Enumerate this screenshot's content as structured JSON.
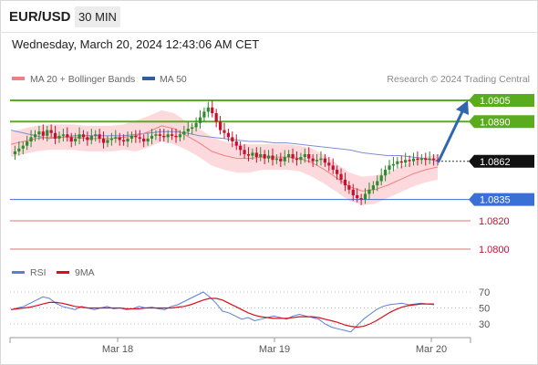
{
  "header": {
    "symbol": "EUR/USD",
    "timeframe": "30 MIN",
    "timestamp": "Wednesday, March 20, 2024 12:43:06 AM CET"
  },
  "legend": {
    "ma20": "MA 20 + Bollinger Bands",
    "ma50": "MA 50",
    "credit": "Research © 2024 Trading Central",
    "rsi": "RSI",
    "rsi_ma": "9MA"
  },
  "colors": {
    "candle_up": "#2e8b2e",
    "candle_down": "#c8102e",
    "ma20": "#f08080",
    "ma50": "#7f8fcf",
    "bollinger": "#fbd2d6",
    "resistance": "#5aab1e",
    "current": "#111111",
    "support": "#3a6fd8",
    "support_secondary": "#e07070",
    "arrow": "#2f66ae",
    "rsi": "#5b7fd6",
    "rsi_ma": "#d8101e"
  },
  "chart_data": [
    {
      "type": "candlestick",
      "title": "EUR/USD 30 MIN",
      "x_labels": [
        "Mar 18",
        "Mar 19",
        "Mar 20"
      ],
      "y_range": [
        1.0792,
        1.0912
      ],
      "close_path": [
        1.0867,
        1.0869,
        1.0871,
        1.0873,
        1.0876,
        1.0879,
        1.0881,
        1.0883,
        1.088,
        1.0884,
        1.0882,
        1.0878,
        1.088,
        1.0881,
        1.0879,
        1.0876,
        1.0878,
        1.0881,
        1.0879,
        1.0877,
        1.088,
        1.0881,
        1.0878,
        1.0875,
        1.0877,
        1.0878,
        1.0879,
        1.0877,
        1.0876,
        1.0878,
        1.088,
        1.0879,
        1.0878,
        1.0876,
        1.0878,
        1.088,
        1.0881,
        1.088,
        1.0879,
        1.0881,
        1.088,
        1.0879,
        1.0881,
        1.0883,
        1.0885,
        1.0886,
        1.0889,
        1.0893,
        1.0897,
        1.09,
        1.0896,
        1.089,
        1.0884,
        1.0882,
        1.0879,
        1.0876,
        1.0873,
        1.087,
        1.0867,
        1.0866,
        1.0868,
        1.0865,
        1.0867,
        1.0864,
        1.0866,
        1.0863,
        1.0864,
        1.0862,
        1.0865,
        1.0867,
        1.0864,
        1.0863,
        1.0865,
        1.0867,
        1.0864,
        1.0862,
        1.0863,
        1.0864,
        1.0861,
        1.0859,
        1.0856,
        1.0853,
        1.0849,
        1.0845,
        1.0842,
        1.0838,
        1.0836,
        1.0835,
        1.0839,
        1.0842,
        1.0845,
        1.0848,
        1.0852,
        1.0856,
        1.0859,
        1.086,
        1.0862,
        1.0861,
        1.0863,
        1.0862,
        1.0864,
        1.0863,
        1.0864,
        1.0863,
        1.0864,
        1.0863,
        1.0862
      ],
      "ma50_path": [
        1.0884,
        1.0882,
        1.088,
        1.0878,
        1.0879,
        1.088,
        1.088,
        1.088,
        1.088,
        1.088,
        1.0881,
        1.0882,
        1.0883,
        1.0883,
        1.0882,
        1.088,
        1.0879,
        1.0878,
        1.0877,
        1.0876,
        1.0876,
        1.0875,
        1.0875,
        1.0874,
        1.0873,
        1.0872,
        1.0871,
        1.087,
        1.0868,
        1.0867,
        1.0866,
        1.0866,
        1.0865,
        1.0864,
        1.0862
      ],
      "ma20_path": [
        1.0874,
        1.0876,
        1.0878,
        1.0879,
        1.0879,
        1.0879,
        1.0878,
        1.0878,
        1.0878,
        1.0879,
        1.088,
        1.0883,
        1.0887,
        1.0885,
        1.088,
        1.0875,
        1.0869,
        1.0866,
        1.0864,
        1.0864,
        1.0865,
        1.0865,
        1.0865,
        1.0864,
        1.0861,
        1.0856,
        1.085,
        1.0844,
        1.0841,
        1.0842,
        1.0845,
        1.0849,
        1.0853,
        1.0856,
        1.0858
      ],
      "levels": [
        {
          "value": 1.0905,
          "label": "1.0905",
          "kind": "resistance"
        },
        {
          "value": 1.089,
          "label": "1.0890",
          "kind": "resistance"
        },
        {
          "value": 1.0862,
          "label": "1.0862",
          "kind": "current"
        },
        {
          "value": 1.0835,
          "label": "1.0835",
          "kind": "support"
        },
        {
          "value": 1.082,
          "label": "1.0820",
          "kind": "support_secondary"
        },
        {
          "value": 1.08,
          "label": "1.0800",
          "kind": "support_secondary"
        }
      ],
      "projection": {
        "from": 1.0862,
        "to": 1.0905,
        "direction": "up"
      }
    },
    {
      "type": "line",
      "title": "RSI",
      "y_ticks": [
        70,
        50,
        30
      ],
      "y_range": [
        15,
        80
      ],
      "series": [
        {
          "name": "RSI",
          "values": [
            48,
            50,
            52,
            56,
            60,
            64,
            62,
            56,
            52,
            50,
            48,
            52,
            50,
            48,
            50,
            52,
            49,
            50,
            48,
            49,
            52,
            50,
            51,
            49,
            48,
            52,
            54,
            58,
            62,
            66,
            70,
            64,
            56,
            46,
            44,
            40,
            36,
            38,
            34,
            36,
            38,
            40,
            38,
            36,
            40,
            42,
            40,
            38,
            36,
            30,
            26,
            24,
            22,
            20,
            28,
            36,
            42,
            48,
            52,
            54,
            55,
            56,
            54,
            55,
            56,
            55,
            54
          ]
        },
        {
          "name": "9MA",
          "values": [
            48,
            49,
            50,
            51,
            53,
            55,
            57,
            57,
            56,
            54,
            52,
            51,
            50,
            50,
            50,
            50,
            50,
            50,
            49,
            49,
            49,
            50,
            50,
            50,
            50,
            50,
            51,
            52,
            54,
            57,
            60,
            62,
            62,
            60,
            56,
            52,
            48,
            44,
            41,
            39,
            38,
            37,
            37,
            37,
            38,
            39,
            39,
            39,
            38,
            36,
            34,
            32,
            29,
            27,
            26,
            27,
            30,
            34,
            39,
            44,
            48,
            51,
            53,
            54,
            55,
            55,
            55
          ]
        }
      ]
    }
  ]
}
